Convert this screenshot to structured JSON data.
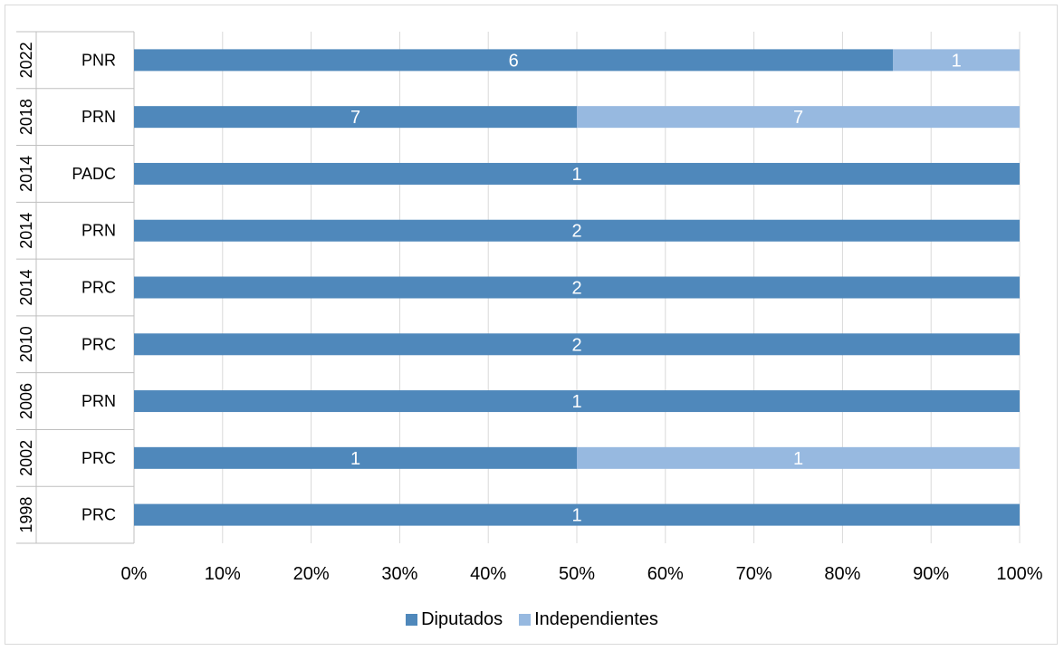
{
  "chart_data": {
    "type": "bar",
    "orientation": "horizontal",
    "stacking": "percent",
    "categories": [
      {
        "year": "2022",
        "party": "PNR"
      },
      {
        "year": "2018",
        "party": "PRN"
      },
      {
        "year": "2014",
        "party": "PADC"
      },
      {
        "year": "2014",
        "party": "PRN"
      },
      {
        "year": "2014",
        "party": "PRC"
      },
      {
        "year": "2010",
        "party": "PRC"
      },
      {
        "year": "2006",
        "party": "PRN"
      },
      {
        "year": "2002",
        "party": "PRC"
      },
      {
        "year": "1998",
        "party": "PRC"
      }
    ],
    "series": [
      {
        "name": "Diputados",
        "color": "#4f88bb",
        "values": [
          6,
          7,
          1,
          2,
          2,
          2,
          1,
          1,
          1
        ]
      },
      {
        "name": "Independientes",
        "color": "#97b9e0",
        "values": [
          1,
          7,
          0,
          0,
          0,
          0,
          0,
          1,
          0
        ]
      }
    ],
    "x_ticks": [
      "0%",
      "10%",
      "20%",
      "30%",
      "40%",
      "50%",
      "60%",
      "70%",
      "80%",
      "90%",
      "100%"
    ],
    "xlim": [
      0,
      100
    ],
    "grid": true,
    "legend_position": "bottom"
  }
}
